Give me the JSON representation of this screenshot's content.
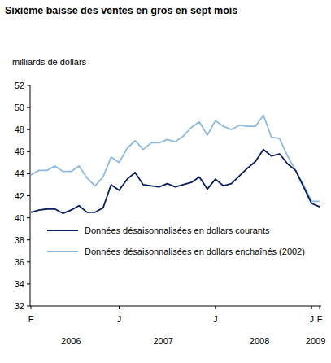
{
  "chart_data": {
    "type": "line",
    "title": "Sixième baisse des ventes en gros en sept mois",
    "y_label": "milliards de dollars",
    "categories": [
      "F",
      null,
      null,
      null,
      null,
      null,
      null,
      null,
      null,
      null,
      null,
      "J",
      null,
      null,
      null,
      null,
      null,
      null,
      null,
      null,
      null,
      null,
      null,
      "J",
      null,
      null,
      null,
      null,
      null,
      null,
      null,
      null,
      null,
      null,
      null,
      "J",
      "F"
    ],
    "x_groups": [
      {
        "label": "2006",
        "start": 0,
        "end": 10
      },
      {
        "label": "2007",
        "start": 11,
        "end": 22
      },
      {
        "label": "2008",
        "start": 23,
        "end": 34
      },
      {
        "label": "2009",
        "start": 35,
        "end": 36
      }
    ],
    "series": [
      {
        "name": "Données désaisonnalisées en dollars courants",
        "color": "#0b1f5e",
        "values": [
          40.5,
          40.7,
          40.8,
          40.8,
          40.4,
          40.7,
          41.1,
          40.5,
          40.5,
          40.9,
          43.0,
          42.5,
          43.5,
          44.1,
          43.0,
          42.9,
          42.8,
          43.1,
          42.8,
          43.0,
          43.2,
          43.7,
          42.6,
          43.5,
          42.9,
          43.1,
          43.8,
          44.5,
          45.1,
          46.2,
          45.6,
          45.8,
          44.9,
          44.3,
          42.8,
          41.3,
          41.0
        ]
      },
      {
        "name": "Données désaisonnalisées en dollars enchaînés (2002)",
        "color": "#8fbbe3",
        "values": [
          43.9,
          44.3,
          44.3,
          44.7,
          44.2,
          44.2,
          44.7,
          43.6,
          42.9,
          43.7,
          45.5,
          45.0,
          46.3,
          47.0,
          46.2,
          46.8,
          46.8,
          47.1,
          46.9,
          47.4,
          48.2,
          48.7,
          47.5,
          48.8,
          48.3,
          48.0,
          48.4,
          48.3,
          48.3,
          49.3,
          47.3,
          47.2,
          45.6,
          44.3,
          43.0,
          41.5,
          41.5
        ]
      }
    ],
    "ylim": [
      32,
      52
    ],
    "yticks": [
      32,
      34,
      36,
      38,
      40,
      42,
      44,
      46,
      48,
      50,
      52
    ],
    "grid": false,
    "legend": "lower left"
  }
}
